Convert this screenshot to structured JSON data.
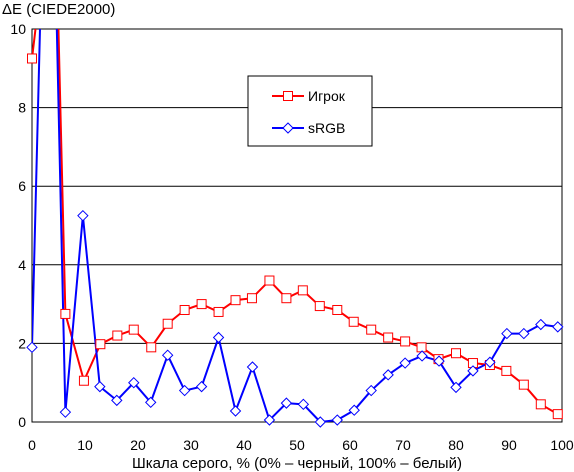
{
  "chart_data": {
    "type": "line",
    "title": "",
    "ylabel": "ΔE (CIEDE2000)",
    "xlabel": "Шкала серого, % (0% – черный, 100% – белый)",
    "xlim": [
      0,
      100
    ],
    "ylim": [
      0,
      10
    ],
    "xticks": [
      0,
      10,
      20,
      30,
      40,
      50,
      60,
      70,
      80,
      90,
      100
    ],
    "yticks": [
      0,
      2,
      4,
      6,
      8,
      10
    ],
    "xtick_labels": [
      "0",
      "10",
      "20",
      "30",
      "40",
      "50",
      "60",
      "70",
      "80",
      "90",
      "100"
    ],
    "ytick_labels": [
      "0",
      "2",
      "4",
      "6",
      "8",
      "10"
    ],
    "grid": "horizontal",
    "legend_position": "top-right",
    "series": [
      {
        "name": "Игрок",
        "color": "#ff0000",
        "marker": "square",
        "x": [
          0,
          1.1,
          4.9,
          6.3,
          9.8,
          12.9,
          16.1,
          19.2,
          22.5,
          25.6,
          28.8,
          32,
          35.2,
          38.4,
          41.5,
          44.8,
          48,
          51.1,
          54.3,
          57.6,
          60.7,
          64,
          67.2,
          70.4,
          73.5,
          76.7,
          80,
          83.2,
          86.4,
          89.5,
          92.8,
          96,
          99.2
        ],
        "values": [
          9.25,
          10.5,
          10.5,
          2.75,
          1.05,
          1.98,
          2.2,
          2.35,
          1.9,
          2.5,
          2.85,
          3.0,
          2.8,
          3.1,
          3.15,
          3.6,
          3.15,
          3.35,
          2.95,
          2.85,
          2.55,
          2.35,
          2.15,
          2.05,
          1.9,
          1.6,
          1.75,
          1.5,
          1.45,
          1.3,
          0.95,
          0.45,
          0.2
        ]
      },
      {
        "name": "sRGB",
        "color": "#0000ff",
        "marker": "diamond",
        "x": [
          0,
          1.6,
          4.6,
          6.3,
          9.6,
          12.8,
          16,
          19.2,
          22.4,
          25.6,
          28.8,
          32,
          35.2,
          38.4,
          41.6,
          44.8,
          48,
          51.2,
          54.4,
          57.6,
          60.8,
          64,
          67.2,
          70.4,
          73.6,
          76.8,
          80,
          83.2,
          86.4,
          89.6,
          92.8,
          96,
          99.2
        ],
        "values": [
          1.9,
          10.5,
          10.5,
          0.25,
          5.25,
          0.9,
          0.55,
          1.0,
          0.5,
          1.7,
          0.8,
          0.9,
          2.15,
          0.28,
          1.4,
          0.05,
          0.48,
          0.45,
          0.0,
          0.05,
          0.3,
          0.8,
          1.2,
          1.5,
          1.68,
          1.55,
          0.88,
          1.3,
          1.52,
          2.25,
          2.25,
          2.48,
          2.42
        ]
      }
    ]
  }
}
